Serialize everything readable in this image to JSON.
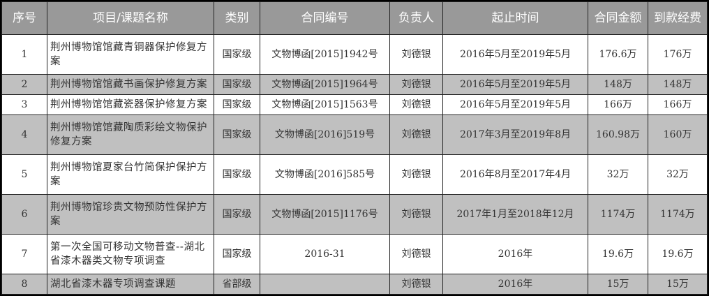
{
  "headers": [
    "序号",
    "项目/课题名称",
    "类别",
    "合同编号",
    "负责人",
    "起止时间",
    "合同金额",
    "到款经费"
  ],
  "rows": [
    {
      "no": "1",
      "name": "荆州博物馆馆藏青铜器保护修复方案",
      "type": "国家级",
      "contract": "文物博函[2015]1942号",
      "lead": "刘德银",
      "period": "2016年5月至2019年5月",
      "amount": "176.6万",
      "received": "176万"
    },
    {
      "no": "2",
      "name": "荆州博物馆馆藏书画保护修复方案",
      "type": "国家级",
      "contract": "文物博函[2015]1964号",
      "lead": "刘德银",
      "period": "2016年5月至2019年5月",
      "amount": "148万",
      "received": "148万"
    },
    {
      "no": "3",
      "name": "荆州博物馆馆藏瓷器保护修复方案",
      "type": "国家级",
      "contract": "文物博函[2015]1563号",
      "lead": "刘德银",
      "period": "2016年5月至2019年5月",
      "amount": "166万",
      "received": "166万"
    },
    {
      "no": "4",
      "name": "荆州博物馆馆藏陶质彩绘文物保护修复方案",
      "type": "国家级",
      "contract": "文物博函[2016]519号",
      "lead": "刘德银",
      "period": "2017年3月至2019年8月",
      "amount": "160.98万",
      "received": "160万"
    },
    {
      "no": "5",
      "name": "荆州博物馆夏家台竹简保护保护方案",
      "type": "国家级",
      "contract": "文物博函[2016]585号",
      "lead": "刘德银",
      "period": "2016年8月至2017年4月",
      "amount": "32万",
      "received": "32万"
    },
    {
      "no": "6",
      "name": "荆州博物馆珍贵文物预防性保护方案",
      "type": "国家级",
      "contract": "文物博函[2015]1176号",
      "lead": "刘德银",
      "period": "2017年1月至2018年12月",
      "amount": "1174万",
      "received": "1174万"
    },
    {
      "no": "7",
      "name": "第一次全国可移动文物普查--湖北省漆木器类文物专项调查",
      "type": "国家级",
      "contract": "2016-31",
      "lead": "刘德银",
      "period": "2016年",
      "amount": "19.6万",
      "received": "19.6万"
    },
    {
      "no": "8",
      "name": "湖北省漆木器专项调查课题",
      "type": "省部级",
      "contract": "",
      "lead": "刘德银",
      "period": "2016年",
      "amount": "15万",
      "received": "15万"
    }
  ]
}
